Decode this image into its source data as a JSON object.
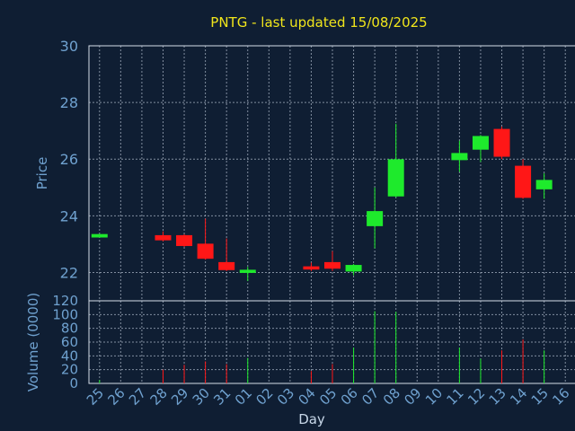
{
  "chart_data": {
    "type": "candlestick",
    "title": "PNTG - last updated 15/08/2025",
    "xlabel": "Day",
    "price_ylabel": "Price",
    "volume_ylabel": "Volume (0000)",
    "price_ylim": [
      21.0,
      30.0
    ],
    "price_yticks": [
      22,
      24,
      26,
      28,
      30
    ],
    "volume_ylim": [
      0,
      120
    ],
    "volume_yticks": [
      0,
      20,
      40,
      60,
      80,
      100,
      120
    ],
    "categories": [
      "25",
      "26",
      "27",
      "28",
      "29",
      "30",
      "31",
      "01",
      "02",
      "03",
      "04",
      "05",
      "06",
      "07",
      "08",
      "09",
      "10",
      "11",
      "12",
      "13",
      "14",
      "15",
      "16"
    ],
    "candles": [
      {
        "day": "25",
        "open": 23.25,
        "close": 23.34,
        "high": 23.36,
        "low": 23.24,
        "volume": 5
      },
      {
        "day": "28",
        "open": 23.3,
        "close": 23.15,
        "high": 23.45,
        "low": 23.1,
        "volume": 20
      },
      {
        "day": "29",
        "open": 23.3,
        "close": 22.95,
        "high": 23.35,
        "low": 22.9,
        "volume": 27
      },
      {
        "day": "30",
        "open": 23.0,
        "close": 22.5,
        "high": 23.9,
        "low": 22.45,
        "volume": 32
      },
      {
        "day": "31",
        "open": 22.35,
        "close": 22.1,
        "high": 23.2,
        "low": 22.05,
        "volume": 28
      },
      {
        "day": "01",
        "open": 22.0,
        "close": 22.08,
        "high": 22.2,
        "low": 21.7,
        "volume": 37
      },
      {
        "day": "04",
        "open": 22.2,
        "close": 22.12,
        "high": 22.35,
        "low": 22.05,
        "volume": 18
      },
      {
        "day": "05",
        "open": 22.35,
        "close": 22.15,
        "high": 22.75,
        "low": 22.05,
        "volume": 28
      },
      {
        "day": "06",
        "open": 22.05,
        "close": 22.25,
        "high": 22.3,
        "low": 21.9,
        "volume": 52
      },
      {
        "day": "07",
        "open": 23.65,
        "close": 24.15,
        "high": 25.0,
        "low": 22.85,
        "volume": 105
      },
      {
        "day": "08",
        "open": 24.7,
        "close": 25.98,
        "high": 27.25,
        "low": 24.65,
        "volume": 104
      },
      {
        "day": "11",
        "open": 25.98,
        "close": 26.2,
        "high": 26.65,
        "low": 25.55,
        "volume": 52
      },
      {
        "day": "12",
        "open": 26.35,
        "close": 26.8,
        "high": 26.85,
        "low": 25.9,
        "volume": 36
      },
      {
        "day": "13",
        "open": 27.05,
        "close": 26.1,
        "high": 27.15,
        "low": 26.0,
        "volume": 48
      },
      {
        "day": "14",
        "open": 25.75,
        "close": 24.65,
        "high": 26.0,
        "low": 24.6,
        "volume": 64
      },
      {
        "day": "15",
        "open": 24.95,
        "close": 25.25,
        "high": 25.5,
        "low": 24.6,
        "volume": 48
      }
    ]
  }
}
